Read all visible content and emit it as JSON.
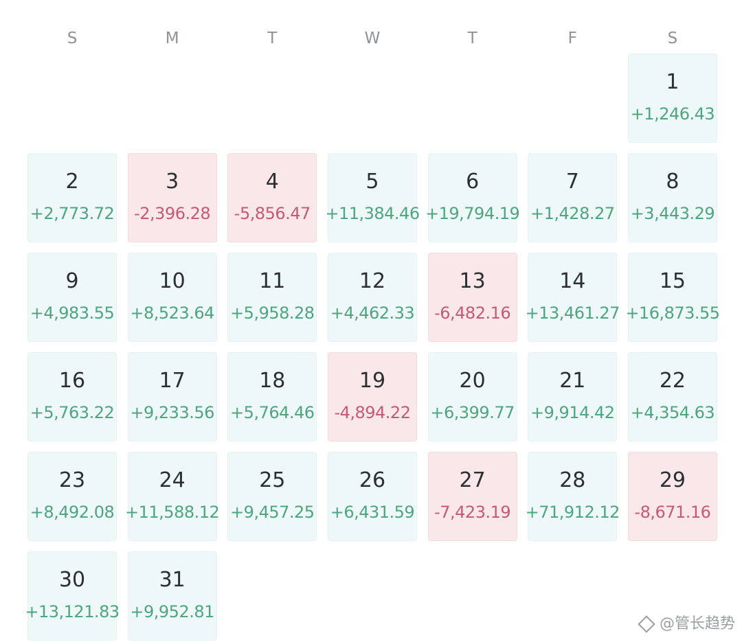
{
  "weekdays": [
    "S",
    "M",
    "T",
    "W",
    "T",
    "F",
    "S"
  ],
  "leading_blank_days": 6,
  "days": [
    {
      "day": "1",
      "value": "+1,246.43",
      "sign": "pos"
    },
    {
      "day": "2",
      "value": "+2,773.72",
      "sign": "pos"
    },
    {
      "day": "3",
      "value": "-2,396.28",
      "sign": "neg"
    },
    {
      "day": "4",
      "value": "-5,856.47",
      "sign": "neg"
    },
    {
      "day": "5",
      "value": "+11,384.46",
      "sign": "pos"
    },
    {
      "day": "6",
      "value": "+19,794.19",
      "sign": "pos"
    },
    {
      "day": "7",
      "value": "+1,428.27",
      "sign": "pos"
    },
    {
      "day": "8",
      "value": "+3,443.29",
      "sign": "pos"
    },
    {
      "day": "9",
      "value": "+4,983.55",
      "sign": "pos"
    },
    {
      "day": "10",
      "value": "+8,523.64",
      "sign": "pos"
    },
    {
      "day": "11",
      "value": "+5,958.28",
      "sign": "pos"
    },
    {
      "day": "12",
      "value": "+4,462.33",
      "sign": "pos"
    },
    {
      "day": "13",
      "value": "-6,482.16",
      "sign": "neg"
    },
    {
      "day": "14",
      "value": "+13,461.27",
      "sign": "pos"
    },
    {
      "day": "15",
      "value": "+16,873.55",
      "sign": "pos"
    },
    {
      "day": "16",
      "value": "+5,763.22",
      "sign": "pos"
    },
    {
      "day": "17",
      "value": "+9,233.56",
      "sign": "pos"
    },
    {
      "day": "18",
      "value": "+5,764.46",
      "sign": "pos"
    },
    {
      "day": "19",
      "value": "-4,894.22",
      "sign": "neg"
    },
    {
      "day": "20",
      "value": "+6,399.77",
      "sign": "pos"
    },
    {
      "day": "21",
      "value": "+9,914.42",
      "sign": "pos"
    },
    {
      "day": "22",
      "value": "+4,354.63",
      "sign": "pos"
    },
    {
      "day": "23",
      "value": "+8,492.08",
      "sign": "pos"
    },
    {
      "day": "24",
      "value": "+11,588.12",
      "sign": "pos"
    },
    {
      "day": "25",
      "value": "+9,457.25",
      "sign": "pos"
    },
    {
      "day": "26",
      "value": "+6,431.59",
      "sign": "pos"
    },
    {
      "day": "27",
      "value": "-7,423.19",
      "sign": "neg"
    },
    {
      "day": "28",
      "value": "+71,912.12",
      "sign": "pos"
    },
    {
      "day": "29",
      "value": "-8,671.16",
      "sign": "neg"
    },
    {
      "day": "30",
      "value": "+13,121.83",
      "sign": "pos"
    },
    {
      "day": "31",
      "value": "+9,952.81",
      "sign": "pos"
    }
  ],
  "colors": {
    "positive_bg": "#eef8f9",
    "negative_bg": "#fae7ea",
    "positive_text": "#4ea57e",
    "negative_text": "#c55a74",
    "day_number": "#2b2f33",
    "weekday_label": "#8d9396"
  },
  "watermark": {
    "icon": "diamond-icon",
    "text": "@管长趋势"
  }
}
